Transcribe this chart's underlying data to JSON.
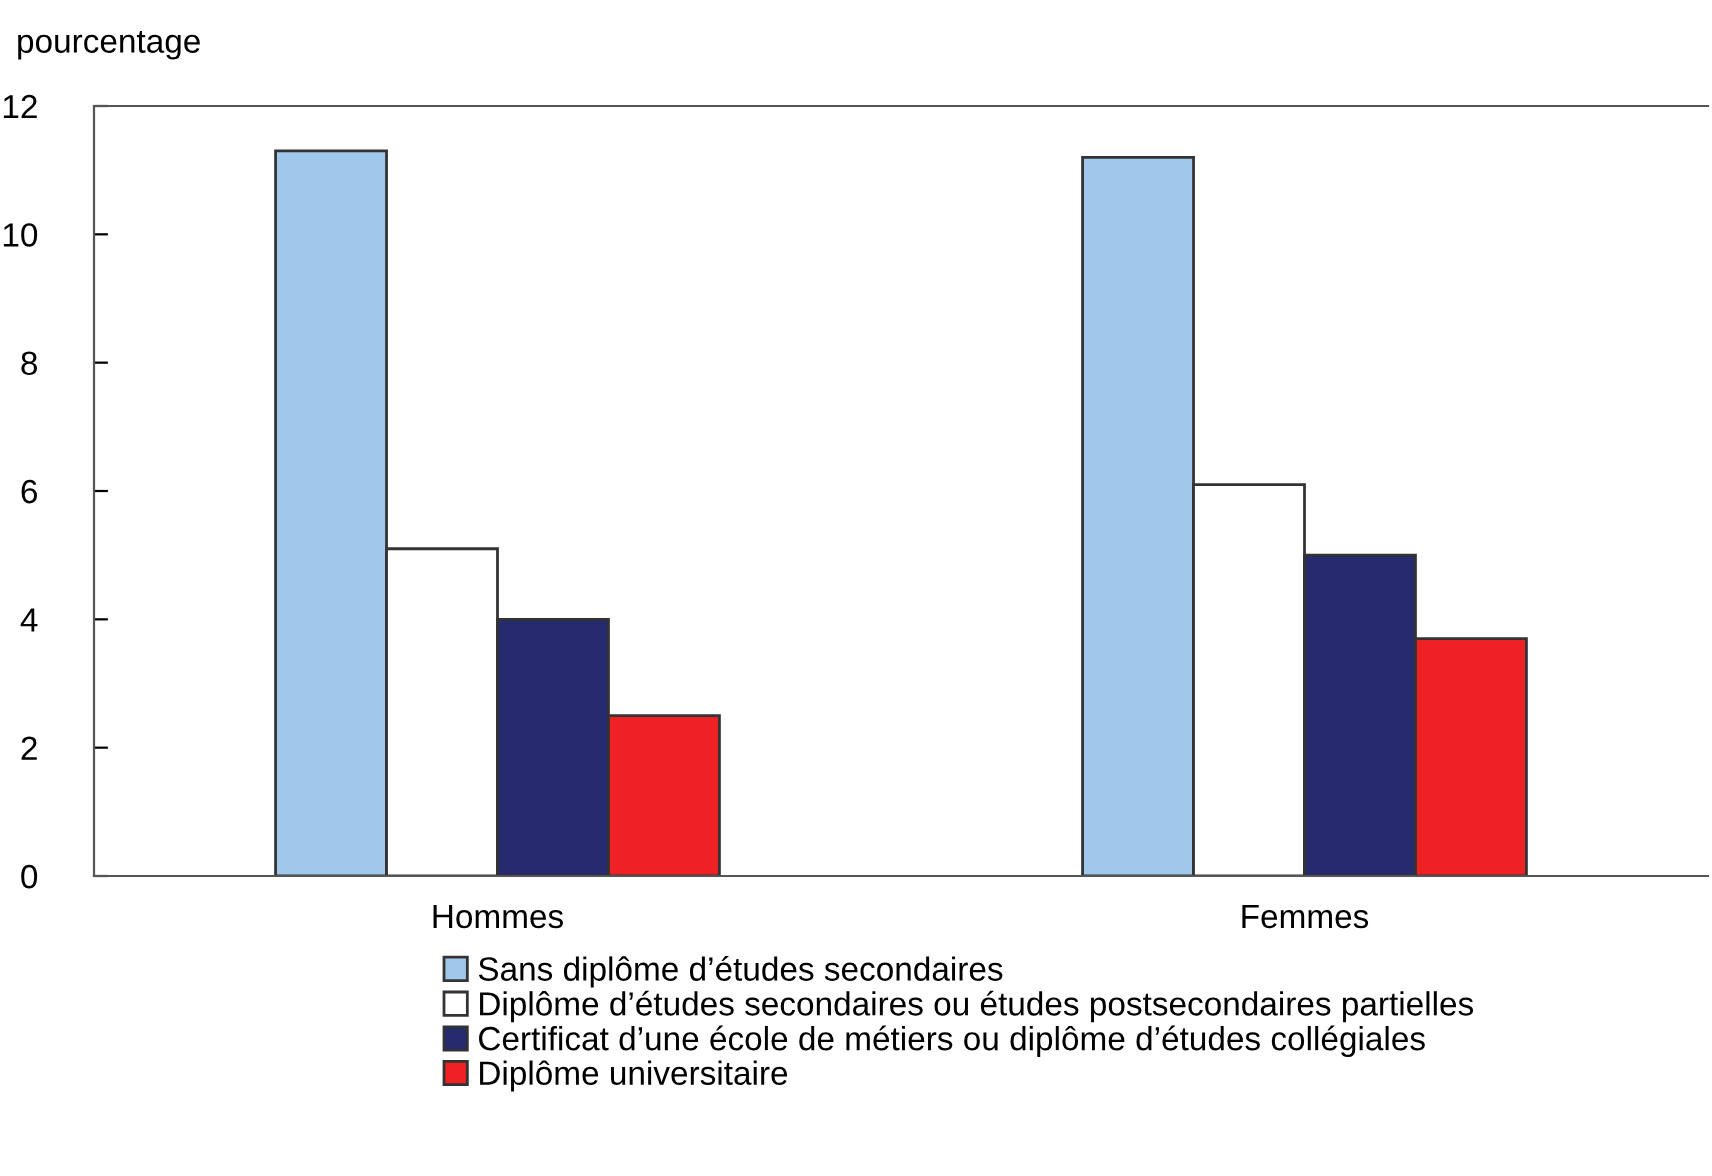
{
  "chart_data": {
    "type": "bar",
    "ylabel": "pourcentage",
    "categories": [
      "Hommes",
      "Femmes"
    ],
    "series": [
      {
        "name": "Sans diplôme d’études secondaires",
        "color": "#a0c8ea",
        "values": [
          11.3,
          11.2
        ]
      },
      {
        "name": "Diplôme d’études secondaires ou études postsecondaires partielles",
        "color": "#ffffff",
        "values": [
          5.1,
          6.1
        ]
      },
      {
        "name": "Certificat d’une école de métiers ou diplôme d’études collégiales",
        "color": "#262a6e",
        "values": [
          4.0,
          5.0
        ]
      },
      {
        "name": "Diplôme universitaire",
        "color": "#ee2224",
        "values": [
          2.5,
          3.7
        ]
      }
    ],
    "ylim": [
      0,
      12
    ],
    "yticks": [
      0,
      2,
      4,
      6,
      8,
      10,
      12
    ],
    "grid": false,
    "legend": "bottom"
  }
}
